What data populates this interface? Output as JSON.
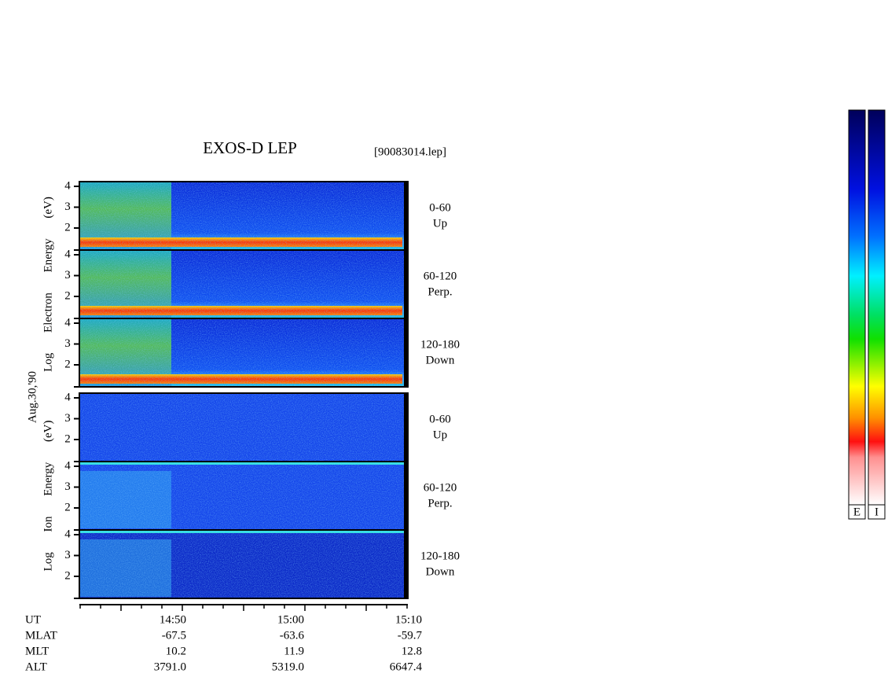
{
  "header": {
    "title": "EXOS-D LEP",
    "file": "[90083014.lep]"
  },
  "date": "Aug.30,'90",
  "groups": [
    {
      "axis_label": "Log Electron Energy (eV)",
      "panels": [
        {
          "range": "0-60",
          "direction": "Up",
          "ticks": [
            "4",
            "3",
            "2"
          ]
        },
        {
          "range": "60-120",
          "direction": "Perp.",
          "ticks": [
            "4",
            "3",
            "2"
          ]
        },
        {
          "range": "120-180",
          "direction": "Down",
          "ticks": [
            "4",
            "3",
            "2"
          ]
        }
      ]
    },
    {
      "axis_label": "Log Ion Energy (eV)",
      "panels": [
        {
          "range": "0-60",
          "direction": "Up",
          "ticks": [
            "4",
            "3",
            "2"
          ]
        },
        {
          "range": "60-120",
          "direction": "Perp.",
          "ticks": [
            "4",
            "3",
            "2"
          ]
        },
        {
          "range": "120-180",
          "direction": "Down",
          "ticks": [
            "4",
            "3",
            "2"
          ]
        }
      ]
    }
  ],
  "time_table": {
    "rows": [
      {
        "label": "UT",
        "values": [
          "14:50",
          "15:00",
          "15:10"
        ]
      },
      {
        "label": "MLAT",
        "values": [
          "-67.5",
          "-63.6",
          "-59.7"
        ]
      },
      {
        "label": "MLT",
        "values": [
          "10.2",
          "11.9",
          "12.8"
        ]
      },
      {
        "label": "ALT",
        "values": [
          "3791.0",
          "5319.0",
          "6647.4"
        ]
      }
    ]
  },
  "colorbar": {
    "labels": [
      "E",
      "I"
    ]
  }
}
